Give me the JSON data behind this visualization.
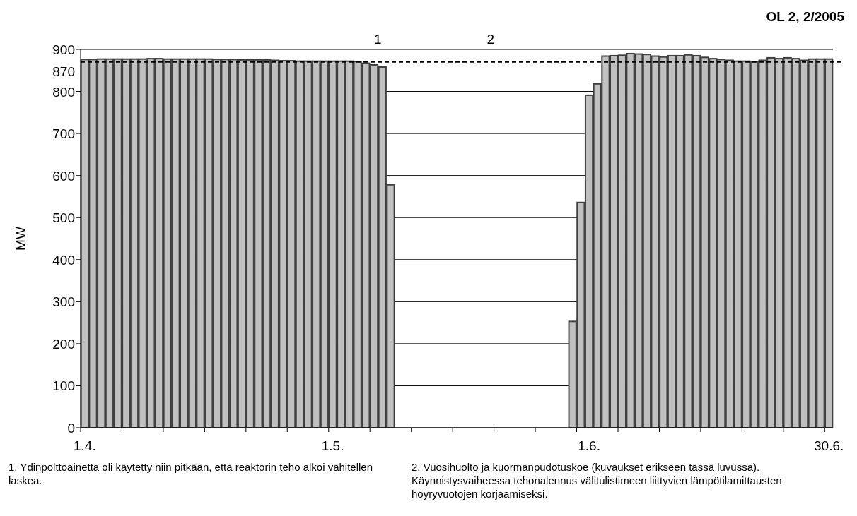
{
  "chart_data": {
    "type": "bar",
    "title": "OL 2, 2/2005",
    "ylabel": "MW",
    "categories": [
      "1.4.",
      null,
      null,
      null,
      null,
      null,
      null,
      null,
      null,
      null,
      null,
      null,
      null,
      null,
      null,
      null,
      null,
      null,
      null,
      null,
      null,
      null,
      null,
      null,
      null,
      null,
      null,
      null,
      null,
      null,
      "1.5.",
      null,
      null,
      null,
      null,
      null,
      null,
      null,
      null,
      null,
      null,
      null,
      null,
      null,
      null,
      null,
      null,
      null,
      null,
      null,
      null,
      null,
      null,
      null,
      null,
      null,
      null,
      null,
      null,
      null,
      null,
      "1.6.",
      null,
      null,
      null,
      null,
      null,
      null,
      null,
      null,
      null,
      null,
      null,
      null,
      null,
      null,
      null,
      null,
      null,
      null,
      null,
      null,
      null,
      null,
      null,
      null,
      null,
      null,
      null,
      null,
      "30.6."
    ],
    "series": [
      {
        "color": "#c0c0c0",
        "values": [
          876,
          876,
          877,
          877,
          877,
          877,
          877,
          877,
          878,
          878,
          877,
          877,
          877,
          877,
          877,
          877,
          876,
          876,
          876,
          875,
          875,
          875,
          875,
          874,
          873,
          873,
          872,
          872,
          872,
          872,
          872,
          872,
          872,
          871,
          867,
          863,
          858,
          578,
          null,
          null,
          null,
          null,
          null,
          null,
          null,
          null,
          null,
          null,
          null,
          null,
          null,
          null,
          null,
          null,
          null,
          null,
          null,
          null,
          null,
          253,
          536,
          791,
          818,
          884,
          885,
          886,
          890,
          889,
          888,
          884,
          882,
          885,
          885,
          887,
          885,
          881,
          878,
          876,
          874,
          872,
          872,
          871,
          874,
          880,
          878,
          880,
          878,
          874,
          877,
          877,
          877
        ]
      }
    ],
    "ylim": [
      0,
      900
    ],
    "yticks": [
      0,
      100,
      200,
      300,
      400,
      500,
      600,
      700,
      800,
      900
    ],
    "grid": "y",
    "ref_lines": [
      {
        "axis": "y",
        "value": 870,
        "label": "870",
        "line_style": "dashed",
        "color": "#000000"
      }
    ],
    "annotations": [
      "1",
      "2",
      "1. Ydinpolttoainetta oli käytetty niin pitkään, että reaktorin teho alkoi vähitellen laskea.",
      "2. Vuosihuolto ja kuormanpudotuskoe (kuvaukset erikseen tässä luvussa). Käynnistysvaiheessa tehonalennus välitulistimeen liittyvien lämpötilamittausten höyryvuotojen korjaamiseksi."
    ]
  }
}
